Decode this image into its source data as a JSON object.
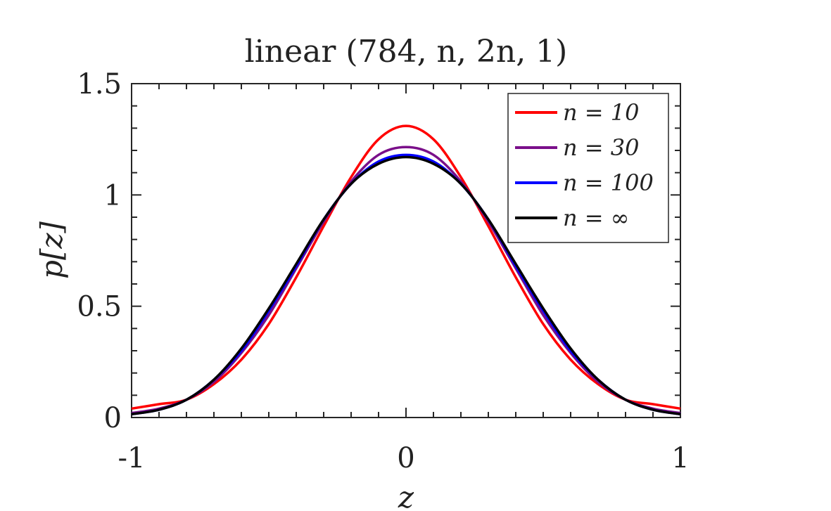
{
  "chart_data": {
    "type": "line",
    "title": "linear (784, n, 2n, 1)",
    "xlabel": "z",
    "ylabel": "p[z]",
    "xlim": [
      -1,
      1
    ],
    "ylim": [
      0,
      1.5
    ],
    "xticks": [
      -1,
      0,
      1
    ],
    "xtick_labels": [
      "-1",
      "0",
      "1"
    ],
    "yticks": [
      0,
      0.5,
      1,
      1.5
    ],
    "ytick_labels": [
      "0",
      "0.5",
      "1",
      "1.5"
    ],
    "grid": false,
    "legend_position": "top-right",
    "x": [
      -1.0,
      -0.9,
      -0.8,
      -0.7,
      -0.6,
      -0.5,
      -0.4,
      -0.3,
      -0.2,
      -0.1,
      0.0,
      0.1,
      0.2,
      0.3,
      0.4,
      0.5,
      0.6,
      0.7,
      0.8,
      0.9,
      1.0
    ],
    "series": [
      {
        "name": "n = 10",
        "color": "#ff0000",
        "values": [
          0.04,
          0.06,
          0.08,
          0.15,
          0.26,
          0.42,
          0.63,
          0.86,
          1.08,
          1.25,
          1.31,
          1.25,
          1.08,
          0.86,
          0.63,
          0.42,
          0.26,
          0.15,
          0.08,
          0.06,
          0.04
        ]
      },
      {
        "name": "n = 30",
        "color": "#7a0f8a",
        "values": [
          0.02,
          0.04,
          0.08,
          0.16,
          0.29,
          0.46,
          0.67,
          0.88,
          1.06,
          1.18,
          1.215,
          1.18,
          1.06,
          0.88,
          0.67,
          0.46,
          0.29,
          0.16,
          0.08,
          0.04,
          0.02
        ]
      },
      {
        "name": "n = 100",
        "color": "#0000ff",
        "values": [
          0.015,
          0.035,
          0.08,
          0.17,
          0.3,
          0.48,
          0.68,
          0.89,
          1.05,
          1.15,
          1.18,
          1.15,
          1.05,
          0.89,
          0.68,
          0.48,
          0.3,
          0.17,
          0.08,
          0.035,
          0.015
        ]
      },
      {
        "name": "n = ∞",
        "color": "#000000",
        "values": [
          0.015,
          0.035,
          0.08,
          0.17,
          0.31,
          0.49,
          0.69,
          0.89,
          1.05,
          1.14,
          1.17,
          1.14,
          1.05,
          0.89,
          0.69,
          0.49,
          0.31,
          0.17,
          0.08,
          0.035,
          0.015
        ]
      }
    ]
  }
}
